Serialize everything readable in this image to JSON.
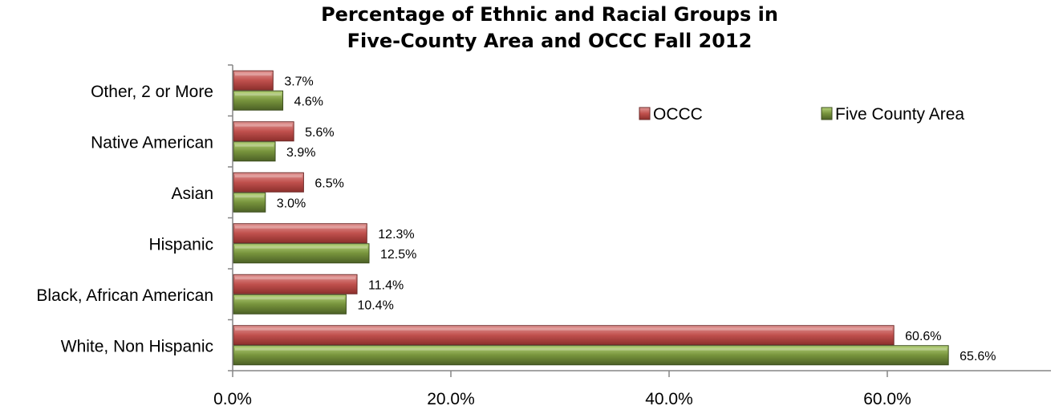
{
  "chart_data": {
    "type": "bar",
    "orientation": "horizontal",
    "title_lines": [
      "Percentage of Ethnic and Racial Groups in",
      "Five-County Area and OCCC Fall 2012"
    ],
    "categories": [
      "Other, 2 or More",
      "Native American",
      "Asian",
      "Hispanic",
      "Black, African American",
      "White, Non Hispanic"
    ],
    "series": [
      {
        "name": "OCCC",
        "values": [
          3.7,
          5.6,
          6.5,
          12.3,
          11.4,
          60.6
        ],
        "labels": [
          "3.7%",
          "5.6%",
          "6.5%",
          "12.3%",
          "11.4%",
          "60.6%"
        ],
        "color": "#c0504d"
      },
      {
        "name": "Five County Area",
        "values": [
          4.6,
          3.9,
          3.0,
          12.5,
          10.4,
          65.6
        ],
        "labels": [
          "4.6%",
          "3.9%",
          "3.0%",
          "12.5%",
          "10.4%",
          "65.6%"
        ],
        "color": "#77933c"
      }
    ],
    "x_ticks": [
      0,
      20,
      40,
      60
    ],
    "x_tick_labels": [
      "0.0%",
      "20.0%",
      "40.0%",
      "60.0%"
    ],
    "xlim": [
      0,
      75
    ],
    "grid": false,
    "legend_position": "top-right"
  }
}
